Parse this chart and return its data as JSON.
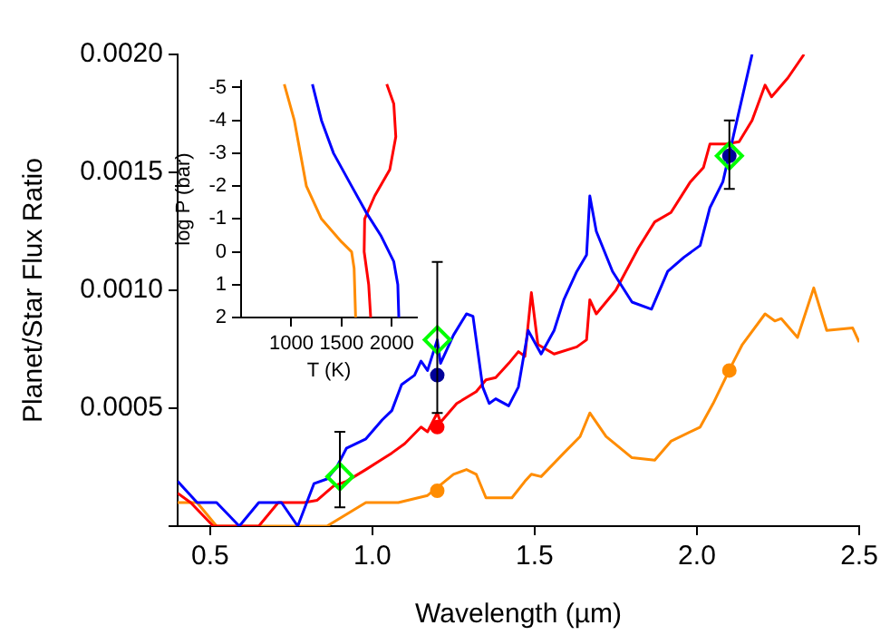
{
  "chart_data": [
    {
      "type": "line",
      "xlabel": "Wavelength (µm)",
      "ylabel": "Planet/Star Flux Ratio",
      "xlim": [
        0.4,
        2.5
      ],
      "ylim": [
        0,
        0.002
      ],
      "xticks": [
        0.5,
        {
          "value": 1,
          "label": "1.0"
        },
        1.5,
        {
          "value": 2,
          "label": "2.0"
        },
        2.5
      ],
      "yticks": [
        {
          "value": 0,
          "label": null
        },
        0.0005,
        {
          "value": 0.001,
          "label": "0.0010"
        },
        0.0015,
        {
          "value": 0.002,
          "label": "0.0020"
        }
      ],
      "grid": false,
      "legend": false,
      "series": [
        {
          "type": "line",
          "color": "#0000ff",
          "marker": "none",
          "x": [
            0.4,
            0.46,
            0.52,
            0.59,
            0.65,
            0.7,
            0.72,
            0.77,
            0.82,
            0.86,
            0.89,
            0.92,
            0.98,
            1.03,
            1.06,
            1.09,
            1.13,
            1.15,
            1.17,
            1.2,
            1.21,
            1.25,
            1.29,
            1.31,
            1.34,
            1.36,
            1.38,
            1.42,
            1.45,
            1.48,
            1.52,
            1.56,
            1.59,
            1.63,
            1.66,
            1.67,
            1.69,
            1.74,
            1.8,
            1.86,
            1.91,
            1.96,
            2.01,
            2.04,
            2.08,
            2.11,
            2.14,
            2.17
          ],
          "values": [
            0.00019,
            0.0001,
            0.0001,
            0,
            0.0001,
            0.0001,
            0.0001,
            0,
            0.00018,
            0.0002,
            0.00025,
            0.00033,
            0.00037,
            0.00045,
            0.00049,
            0.0006,
            0.00064,
            0.0007,
            0.00066,
            0.00079,
            0.00069,
            0.00081,
            0.0009,
            0.00089,
            0.00059,
            0.00052,
            0.00054,
            0.00051,
            0.00059,
            0.00083,
            0.00073,
            0.00083,
            0.00096,
            0.00108,
            0.00115,
            0.0014,
            0.00125,
            0.00108,
            0.00095,
            0.00092,
            0.00108,
            0.00114,
            0.00119,
            0.00135,
            0.00146,
            0.00164,
            0.00182,
            0.002
          ]
        },
        {
          "type": "line",
          "color": "#ff0000",
          "marker": "none",
          "x": [
            0.4,
            0.44,
            0.51,
            0.58,
            0.65,
            0.71,
            0.74,
            0.79,
            0.83,
            0.88,
            0.92,
            0.98,
            1.06,
            1.1,
            1.15,
            1.17,
            1.2,
            1.21,
            1.26,
            1.32,
            1.35,
            1.38,
            1.42,
            1.45,
            1.47,
            1.49,
            1.51,
            1.56,
            1.63,
            1.66,
            1.67,
            1.69,
            1.75,
            1.82,
            1.87,
            1.92,
            1.98,
            2.02,
            2.04,
            2.09,
            2.13,
            2.17,
            2.21,
            2.23,
            2.28,
            2.33
          ],
          "values": [
            0.00014,
            0.0001,
            0,
            0,
            0,
            0.0001,
            0.0001,
            0.0001,
            0.00011,
            0.00017,
            0.00019,
            0.00024,
            0.00031,
            0.00035,
            0.00042,
            0.0004,
            0.00048,
            0.00044,
            0.00052,
            0.00057,
            0.00062,
            0.00063,
            0.00069,
            0.00074,
            0.00072,
            0.00099,
            0.00077,
            0.00073,
            0.00076,
            0.00079,
            0.00096,
            0.0009,
            0.001,
            0.00118,
            0.00129,
            0.00133,
            0.00146,
            0.00152,
            0.00162,
            0.00162,
            0.00163,
            0.00172,
            0.00187,
            0.00182,
            0.0019,
            0.002
          ]
        },
        {
          "type": "line",
          "color": "#ff8c00",
          "marker": "none",
          "x": [
            0.4,
            0.46,
            0.52,
            0.63,
            0.77,
            0.86,
            0.98,
            1.08,
            1.17,
            1.25,
            1.29,
            1.32,
            1.35,
            1.39,
            1.43,
            1.47,
            1.49,
            1.52,
            1.59,
            1.64,
            1.67,
            1.72,
            1.8,
            1.87,
            1.92,
            2.01,
            2.05,
            2.11,
            2.14,
            2.21,
            2.24,
            2.26,
            2.31,
            2.36,
            2.4,
            2.48,
            2.5
          ],
          "values": [
            0.0001,
            0.0001,
            0,
            0,
            0,
            0,
            0.0001,
            0.0001,
            0.00013,
            0.00022,
            0.00024,
            0.00022,
            0.00012,
            0.00012,
            0.00012,
            0.00019,
            0.00022,
            0.00021,
            0.00031,
            0.00038,
            0.00048,
            0.00038,
            0.00029,
            0.00028,
            0.00036,
            0.00042,
            0.00052,
            0.00069,
            0.00077,
            0.0009,
            0.00087,
            0.00088,
            0.0008,
            0.00101,
            0.00083,
            0.00084,
            0.00078
          ]
        },
        {
          "type": "scatter",
          "color": "#000099",
          "marker": "circle",
          "x": [
            1.2,
            2.1
          ],
          "values": [
            0.00064,
            0.00157
          ]
        },
        {
          "type": "scatter",
          "color": "#ff0000",
          "marker": "circle",
          "x": [
            1.2
          ],
          "values": [
            0.00042
          ]
        },
        {
          "type": "scatter",
          "color": "#ff8c00",
          "marker": "circle",
          "x": [
            1.2,
            2.1
          ],
          "values": [
            0.00015,
            0.00066
          ]
        },
        {
          "type": "scatter",
          "color": "#00ff00",
          "marker": "diamond",
          "x": [
            0.9,
            1.2,
            2.1
          ],
          "values": [
            0.00021,
            0.00079,
            0.00157
          ],
          "errors": [
            [
              8e-05,
              0.0004
            ],
            [
              0.00048,
              0.00112
            ],
            [
              0.00143,
              0.00172
            ]
          ]
        }
      ]
    },
    {
      "type": "line",
      "xlabel": "T (K)",
      "ylabel": "log P (bar)",
      "xlim": [
        500,
        2250
      ],
      "ylim": [
        2,
        -5.2
      ],
      "xticks": [
        1000,
        1500,
        2000
      ],
      "yticks": [
        -5,
        -4,
        -3,
        -2,
        -1,
        0,
        1,
        2
      ],
      "grid": false,
      "legend": false,
      "series": [
        {
          "color": "#ff8c00",
          "x": [
            930,
            1030,
            1090,
            1150,
            1300,
            1500,
            1600,
            1625,
            1640
          ],
          "values": [
            -5.1,
            -4,
            -3,
            -2,
            -1,
            -0.3,
            0,
            0.5,
            2
          ]
        },
        {
          "color": "#0000ff",
          "x": [
            1210,
            1300,
            1420,
            1600,
            1745,
            1890,
            2020,
            2060,
            2070
          ],
          "values": [
            -5.1,
            -4,
            -3,
            -2,
            -1.2,
            -0.5,
            0.3,
            1,
            2
          ]
        },
        {
          "color": "#ff0000",
          "x": [
            1950,
            2020,
            2040,
            1980,
            1830,
            1730,
            1725,
            1770,
            1790
          ],
          "values": [
            -5.1,
            -4.5,
            -3.5,
            -2.5,
            -1.7,
            -1,
            0,
            1,
            2
          ]
        }
      ]
    }
  ]
}
